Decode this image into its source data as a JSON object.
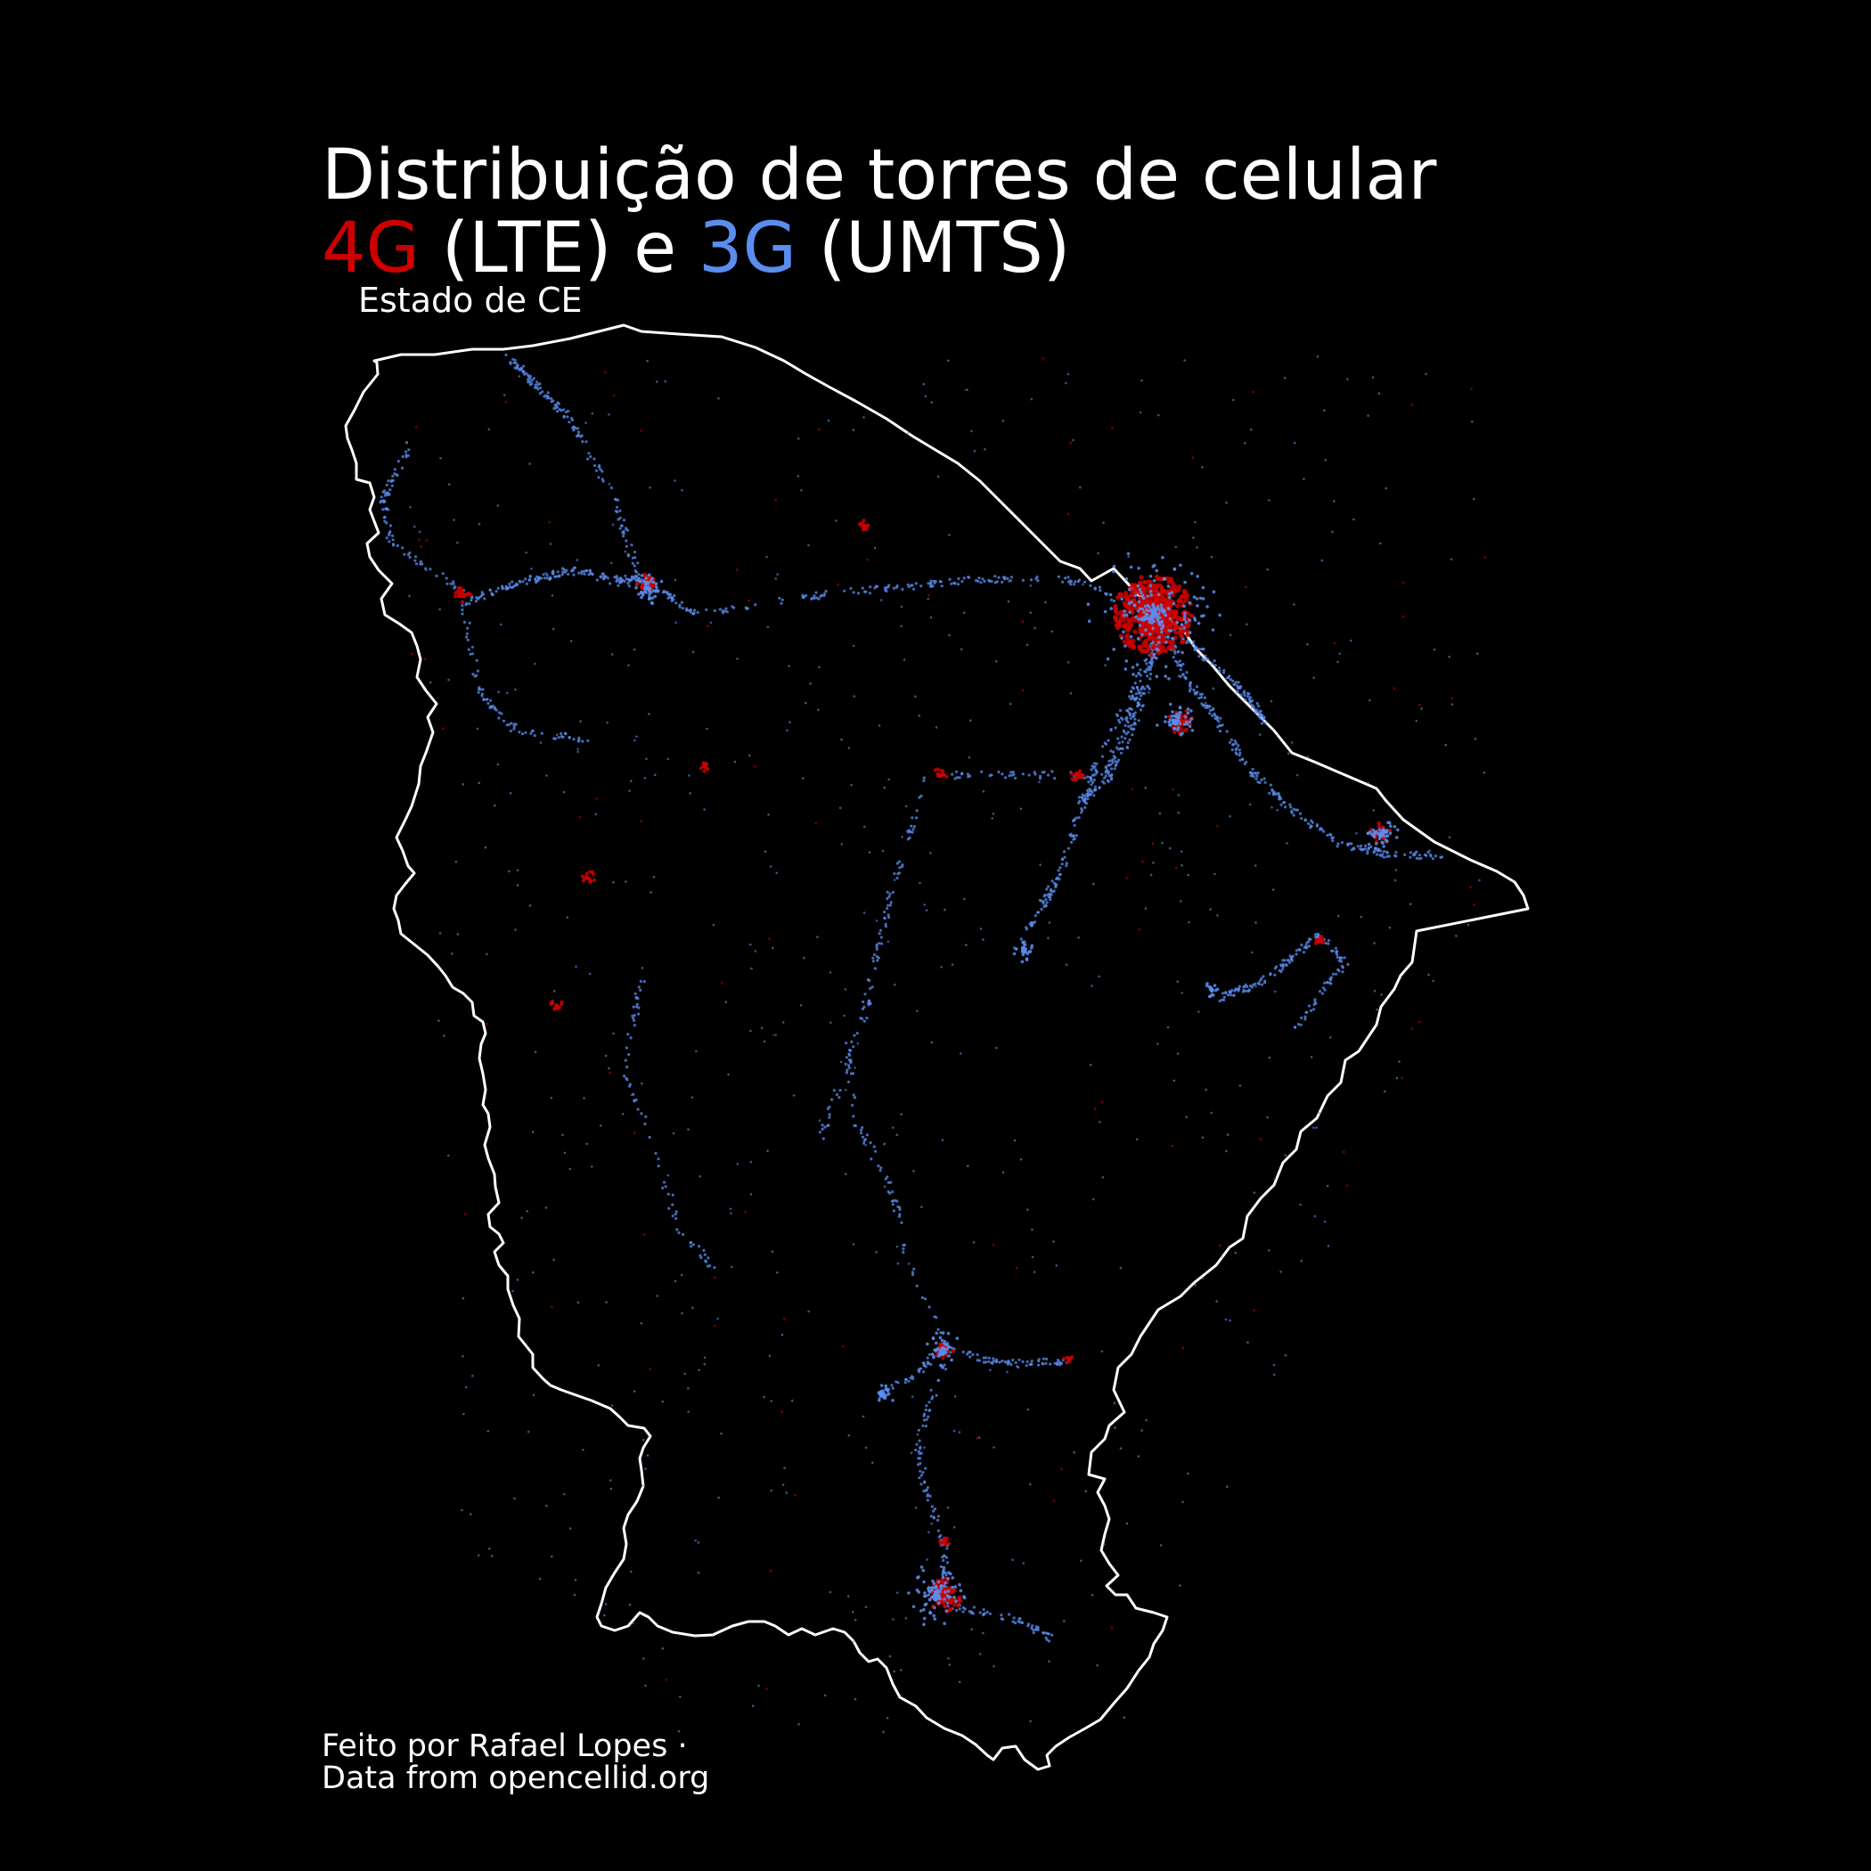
{
  "title": {
    "line1": "Distribuição de torres de celular",
    "lte_label": "4G",
    "lte_rest": " (LTE) e ",
    "umts_label": "3G",
    "umts_rest": " (UMTS)"
  },
  "subtitle": "Estado de CE",
  "caption": {
    "author": "Feito por Rafael Lopes ·",
    "source": "Data from opencellid.org"
  },
  "colors": {
    "background": "#000000",
    "text": "#ffffff",
    "lte": "#cc0000",
    "umts": "#5b8def",
    "border": "#ffffff"
  },
  "legend": [
    {
      "name": "4G",
      "color": "#cc0000"
    },
    {
      "name": "3G",
      "color": "#5b8def"
    }
  ]
}
